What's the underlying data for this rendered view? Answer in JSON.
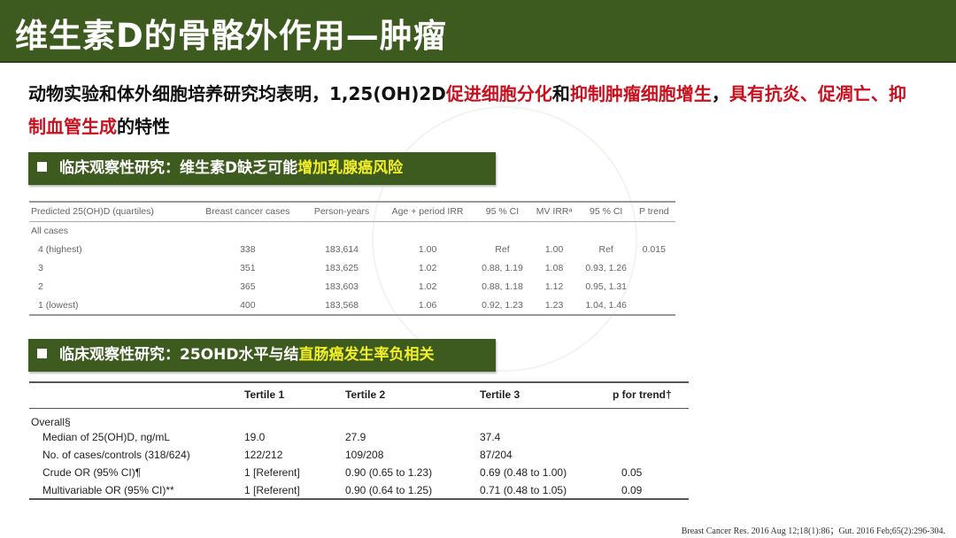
{
  "title": "维生素D的骨骼外作用—肿瘤",
  "intro": {
    "p1": "动物实验和体外细胞培养研究均表明，1,25(OH)2D",
    "r1": "促进细胞分化",
    "p2": "和",
    "r2": "抑制肿瘤细胞增生",
    "p3": "，",
    "r3": "具有抗炎、促凋亡、抑制血管生成",
    "p4": "的特性"
  },
  "banner1": {
    "text": "临床观察性研究：维生素D缺乏可能",
    "highlight": "增加乳腺癌风险"
  },
  "table1": {
    "headers": [
      "Predicted 25(OH)D (quartiles)",
      "Breast cancer cases",
      "Person-years",
      "Age + period IRR",
      "95 % CI",
      "MV IRRᵃ",
      "95 % CI",
      "P trend"
    ],
    "section": "All cases",
    "rows": [
      [
        "4 (highest)",
        "338",
        "183,614",
        "1.00",
        "Ref",
        "1.00",
        "Ref",
        "0.015"
      ],
      [
        "3",
        "351",
        "183,625",
        "1.02",
        "0.88, 1.19",
        "1.08",
        "0.93, 1.26",
        ""
      ],
      [
        "2",
        "365",
        "183,603",
        "1.02",
        "0.88, 1.18",
        "1.12",
        "0.95, 1.31",
        ""
      ],
      [
        "1 (lowest)",
        "400",
        "183,568",
        "1.06",
        "0.92, 1.23",
        "1.23",
        "1.04, 1.46",
        ""
      ]
    ]
  },
  "banner2": {
    "text": "临床观察性研究：25OHD水平与结",
    "highlight": "直肠癌发生率负相关"
  },
  "table2": {
    "headers": [
      "",
      "Tertile 1",
      "Tertile 2",
      "Tertile 3",
      "p for trend†"
    ],
    "section": "Overall§",
    "rows": [
      [
        "Median of 25(OH)D, ng/mL",
        "19.0",
        "27.9",
        "37.4",
        ""
      ],
      [
        "No. of cases/controls (318/624)",
        "122/212",
        "109/208",
        "87/204",
        ""
      ],
      [
        "Crude OR (95% CI)¶",
        "1 [Referent]",
        "0.90 (0.65 to 1.23)",
        "0.69 (0.48 to 1.00)",
        "0.05"
      ],
      [
        "Multivariable OR (95% CI)**",
        "1 [Referent]",
        "0.90 (0.64 to 1.25)",
        "0.71 (0.48 to 1.05)",
        "0.09"
      ]
    ]
  },
  "citation": "Breast Cancer Res. 2016 Aug 12;18(1):86；Gut. 2016 Feb;65(2):296-304."
}
